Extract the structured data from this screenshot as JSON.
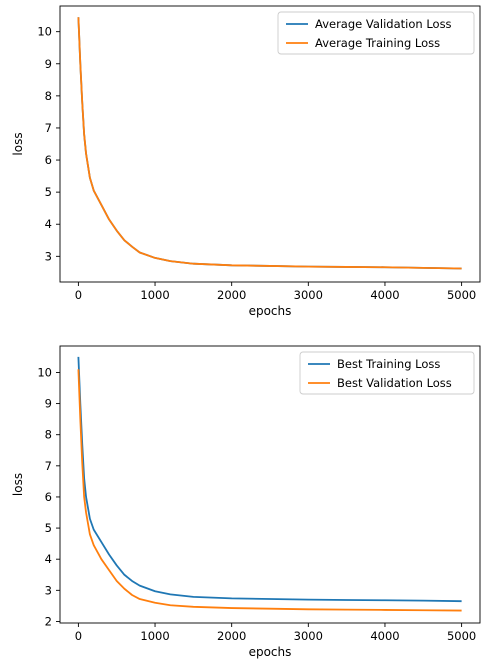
{
  "chart_data": [
    {
      "type": "line",
      "xlabel": "epochs",
      "ylabel": "loss",
      "xlim": [
        -240,
        5240
      ],
      "ylim": [
        2.2,
        10.8
      ],
      "xticks": [
        0,
        1000,
        2000,
        3000,
        4000,
        5000
      ],
      "yticks": [
        3,
        4,
        5,
        6,
        7,
        8,
        9,
        10
      ],
      "grid": false,
      "legend_position": "top-right",
      "series": [
        {
          "name": "Average Validation Loss",
          "color": "#1f77b4",
          "x": [
            0,
            25,
            50,
            75,
            100,
            150,
            200,
            300,
            400,
            500,
            600,
            700,
            800,
            1000,
            1200,
            1500,
            2000,
            2500,
            3000,
            3500,
            4000,
            4500,
            5000
          ],
          "y": [
            10.45,
            9.0,
            7.8,
            6.8,
            6.2,
            5.45,
            5.05,
            4.6,
            4.15,
            3.8,
            3.5,
            3.3,
            3.12,
            2.95,
            2.85,
            2.77,
            2.72,
            2.7,
            2.68,
            2.67,
            2.66,
            2.64,
            2.62
          ]
        },
        {
          "name": "Average Training Loss",
          "color": "#ff7f0e",
          "x": [
            0,
            25,
            50,
            75,
            100,
            150,
            200,
            300,
            400,
            500,
            600,
            700,
            800,
            1000,
            1200,
            1500,
            2000,
            2500,
            3000,
            3500,
            4000,
            4500,
            5000
          ],
          "y": [
            10.45,
            9.0,
            7.8,
            6.8,
            6.2,
            5.45,
            5.05,
            4.6,
            4.15,
            3.8,
            3.5,
            3.3,
            3.12,
            2.95,
            2.85,
            2.77,
            2.72,
            2.7,
            2.68,
            2.67,
            2.66,
            2.64,
            2.62
          ]
        }
      ]
    },
    {
      "type": "line",
      "xlabel": "epochs",
      "ylabel": "loss",
      "xlim": [
        -240,
        5240
      ],
      "ylim": [
        1.95,
        10.85
      ],
      "xticks": [
        0,
        1000,
        2000,
        3000,
        4000,
        5000
      ],
      "yticks": [
        2,
        3,
        4,
        5,
        6,
        7,
        8,
        9,
        10
      ],
      "grid": false,
      "legend_position": "top-right",
      "series": [
        {
          "name": "Best Training Loss",
          "color": "#1f77b4",
          "x": [
            0,
            25,
            50,
            75,
            100,
            150,
            200,
            300,
            400,
            500,
            600,
            700,
            800,
            1000,
            1200,
            1500,
            2000,
            2500,
            3000,
            3500,
            4000,
            4500,
            5000
          ],
          "y": [
            10.5,
            9.0,
            7.7,
            6.6,
            6.0,
            5.3,
            4.95,
            4.55,
            4.15,
            3.8,
            3.5,
            3.3,
            3.15,
            2.97,
            2.87,
            2.79,
            2.74,
            2.72,
            2.7,
            2.69,
            2.68,
            2.67,
            2.65
          ]
        },
        {
          "name": "Best Validation Loss",
          "color": "#ff7f0e",
          "x": [
            0,
            25,
            50,
            75,
            100,
            150,
            200,
            300,
            400,
            500,
            600,
            700,
            800,
            1000,
            1200,
            1500,
            2000,
            2500,
            3000,
            3500,
            4000,
            4500,
            5000
          ],
          "y": [
            10.1,
            8.5,
            7.1,
            6.0,
            5.5,
            4.8,
            4.45,
            4.0,
            3.65,
            3.3,
            3.05,
            2.85,
            2.72,
            2.6,
            2.52,
            2.47,
            2.43,
            2.41,
            2.39,
            2.38,
            2.37,
            2.36,
            2.35
          ]
        }
      ]
    }
  ]
}
